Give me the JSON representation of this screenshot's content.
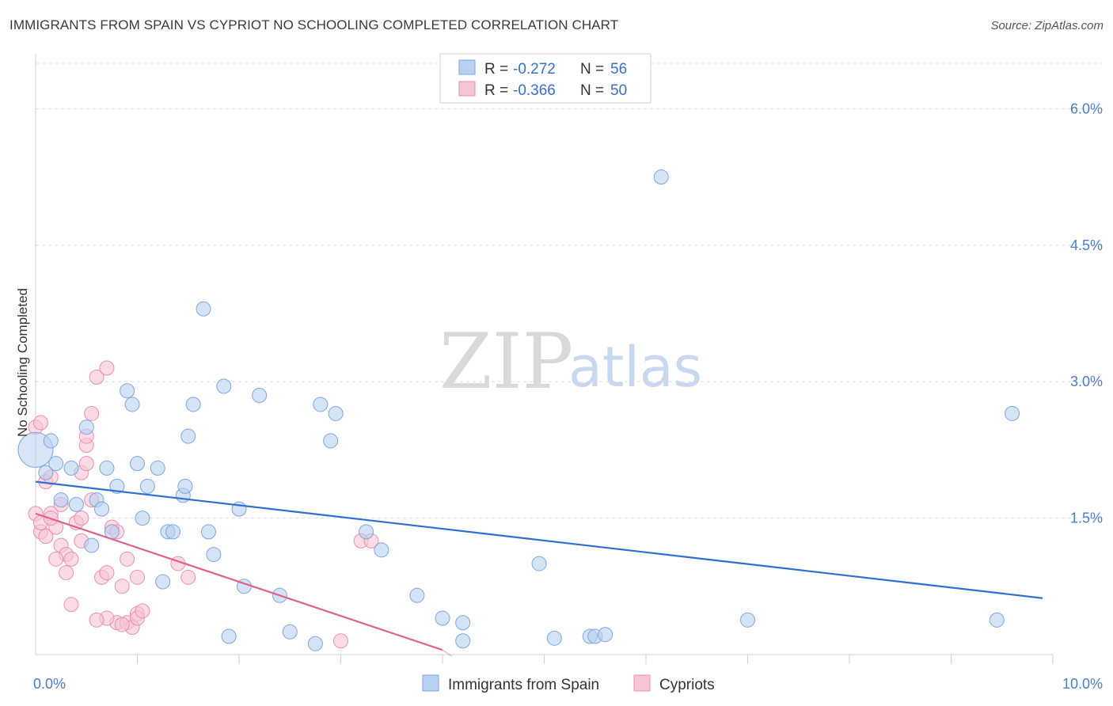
{
  "title": "IMMIGRANTS FROM SPAIN VS CYPRIOT NO SCHOOLING COMPLETED CORRELATION CHART",
  "source": "Source: ZipAtlas.com",
  "colors": {
    "blue_fill": "#b9d0f0",
    "blue_stroke": "#7fa6dc",
    "blue_line": "#2f6fd0",
    "pink_fill": "#f8c5d4",
    "pink_stroke": "#e990ad",
    "pink_line": "#e0608a",
    "grid": "#dddddd",
    "tick_text": "#4a7cc7"
  },
  "legend": {
    "r_label": "R =",
    "n_label": "N =",
    "series": [
      {
        "r": "-0.272",
        "n": "56"
      },
      {
        "r": "-0.366",
        "n": "50"
      }
    ]
  },
  "watermark": {
    "zip": "ZIP",
    "atlas": "atlas"
  },
  "chart_data": {
    "type": "scatter",
    "title": "IMMIGRANTS FROM SPAIN VS CYPRIOT NO SCHOOLING COMPLETED CORRELATION CHART",
    "xlabel": "",
    "ylabel": "No Schooling Completed",
    "xlim": [
      0,
      10
    ],
    "ylim": [
      0,
      6.5
    ],
    "x_tick_labels": [
      {
        "value": 0,
        "label": "0.0%"
      },
      {
        "value": 10,
        "label": "10.0%"
      }
    ],
    "y_tick_labels": [
      {
        "value": 1.5,
        "label": "1.5%"
      },
      {
        "value": 3.0,
        "label": "3.0%"
      },
      {
        "value": 4.5,
        "label": "4.5%"
      },
      {
        "value": 6.0,
        "label": "6.0%"
      }
    ],
    "series": [
      {
        "name": "Immigrants from Spain",
        "trend": {
          "x": [
            0,
            9.9
          ],
          "y": [
            1.9,
            0.62
          ]
        },
        "points": [
          [
            0.0,
            2.25
          ],
          [
            0.15,
            2.35
          ],
          [
            0.1,
            2.0
          ],
          [
            0.2,
            2.1
          ],
          [
            0.35,
            2.05
          ],
          [
            0.5,
            2.5
          ],
          [
            0.25,
            1.7
          ],
          [
            0.4,
            1.65
          ],
          [
            0.6,
            1.7
          ],
          [
            0.65,
            1.6
          ],
          [
            0.7,
            2.05
          ],
          [
            0.8,
            1.85
          ],
          [
            0.9,
            2.9
          ],
          [
            0.95,
            2.75
          ],
          [
            1.0,
            2.1
          ],
          [
            1.1,
            1.85
          ],
          [
            1.2,
            2.05
          ],
          [
            1.05,
            1.5
          ],
          [
            1.3,
            1.35
          ],
          [
            1.35,
            1.35
          ],
          [
            1.45,
            1.75
          ],
          [
            1.47,
            1.85
          ],
          [
            1.5,
            2.4
          ],
          [
            1.55,
            2.75
          ],
          [
            1.65,
            3.8
          ],
          [
            1.7,
            1.35
          ],
          [
            1.75,
            1.1
          ],
          [
            1.85,
            2.95
          ],
          [
            2.0,
            1.6
          ],
          [
            2.2,
            2.85
          ],
          [
            0.55,
            1.2
          ],
          [
            0.75,
            1.35
          ],
          [
            1.25,
            0.8
          ],
          [
            2.05,
            0.75
          ],
          [
            2.4,
            0.65
          ],
          [
            2.5,
            0.25
          ],
          [
            2.8,
            2.75
          ],
          [
            2.9,
            2.35
          ],
          [
            2.95,
            2.65
          ],
          [
            3.25,
            1.35
          ],
          [
            3.4,
            1.15
          ],
          [
            3.75,
            0.65
          ],
          [
            4.0,
            0.4
          ],
          [
            4.2,
            0.35
          ],
          [
            4.2,
            0.15
          ],
          [
            4.95,
            1.0
          ],
          [
            5.1,
            0.18
          ],
          [
            5.45,
            0.2
          ],
          [
            5.5,
            0.2
          ],
          [
            5.6,
            0.22
          ],
          [
            6.15,
            5.25
          ],
          [
            7.0,
            0.38
          ],
          [
            9.45,
            0.38
          ],
          [
            9.6,
            2.65
          ],
          [
            2.75,
            0.12
          ],
          [
            1.9,
            0.2
          ]
        ]
      },
      {
        "name": "Cypriots",
        "trend": {
          "x": [
            0,
            4.0
          ],
          "y": [
            1.55,
            0.05
          ]
        },
        "points": [
          [
            0.0,
            2.5
          ],
          [
            0.05,
            2.55
          ],
          [
            0.1,
            1.9
          ],
          [
            0.15,
            1.95
          ],
          [
            0.0,
            1.55
          ],
          [
            0.05,
            1.35
          ],
          [
            0.15,
            1.55
          ],
          [
            0.1,
            1.3
          ],
          [
            0.2,
            1.4
          ],
          [
            0.25,
            1.2
          ],
          [
            0.3,
            1.1
          ],
          [
            0.2,
            1.05
          ],
          [
            0.35,
            1.05
          ],
          [
            0.3,
            0.9
          ],
          [
            0.4,
            1.45
          ],
          [
            0.45,
            2.0
          ],
          [
            0.5,
            2.3
          ],
          [
            0.5,
            2.4
          ],
          [
            0.5,
            2.1
          ],
          [
            0.55,
            1.7
          ],
          [
            0.45,
            1.25
          ],
          [
            0.35,
            0.55
          ],
          [
            0.6,
            3.05
          ],
          [
            0.7,
            3.15
          ],
          [
            0.55,
            2.65
          ],
          [
            0.65,
            0.85
          ],
          [
            0.7,
            0.9
          ],
          [
            0.75,
            1.4
          ],
          [
            0.8,
            1.35
          ],
          [
            0.85,
            0.75
          ],
          [
            0.9,
            1.05
          ],
          [
            1.0,
            0.85
          ],
          [
            0.8,
            0.35
          ],
          [
            0.7,
            0.4
          ],
          [
            0.9,
            0.35
          ],
          [
            0.95,
            0.3
          ],
          [
            1.0,
            0.45
          ],
          [
            1.0,
            0.4
          ],
          [
            1.4,
            1.0
          ],
          [
            1.5,
            0.85
          ],
          [
            3.2,
            1.25
          ],
          [
            3.3,
            1.25
          ],
          [
            3.0,
            0.15
          ],
          [
            0.05,
            1.45
          ],
          [
            0.25,
            1.65
          ],
          [
            0.6,
            0.38
          ],
          [
            0.85,
            0.33
          ],
          [
            1.05,
            0.48
          ],
          [
            0.15,
            1.5
          ],
          [
            0.45,
            1.5
          ]
        ]
      }
    ]
  }
}
